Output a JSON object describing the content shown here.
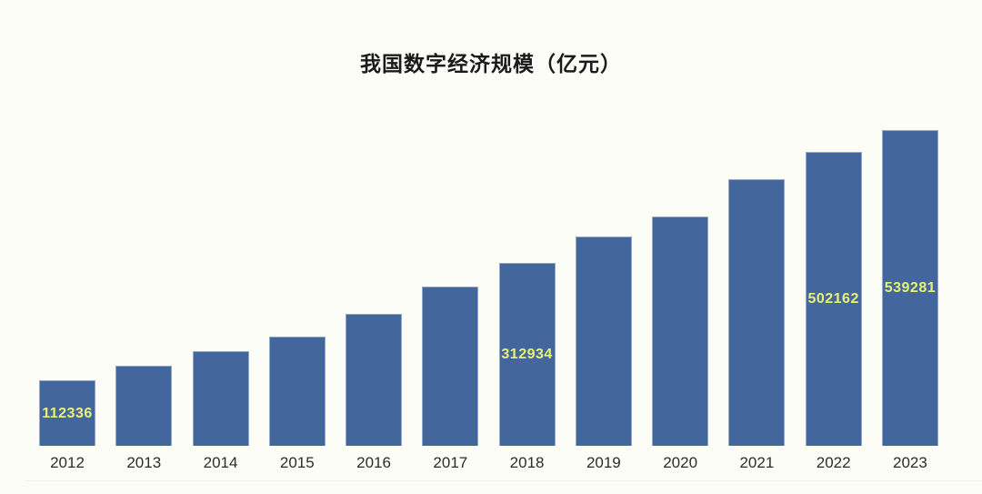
{
  "page": {
    "background_color": "#fdfdf8"
  },
  "chart": {
    "title_color": "#1b1b1b",
    "bar_color": "#43679d",
    "bar_edge_color": "#acbcd5",
    "value_label_color": "#e8f175",
    "axis_text_color": "#2b2b2b"
  },
  "chart_data": {
    "type": "bar",
    "title": "我国数字经济规模（亿元）",
    "categories": [
      "2012",
      "2013",
      "2014",
      "2015",
      "2016",
      "2017",
      "2018",
      "2019",
      "2020",
      "2021",
      "2022",
      "2023"
    ],
    "values": [
      112336,
      136000,
      162000,
      186000,
      226000,
      272000,
      312934,
      358000,
      392000,
      455000,
      502162,
      539281
    ],
    "data_labels": [
      "112336",
      null,
      null,
      null,
      null,
      null,
      "312934",
      null,
      null,
      null,
      "502162",
      "539281"
    ],
    "estimated_categories": [
      "2013",
      "2014",
      "2015",
      "2016",
      "2017",
      "2019",
      "2020",
      "2021"
    ],
    "xlabel": "",
    "ylabel": "",
    "ylim": [
      0,
      560000
    ],
    "value_axis_shown": false,
    "gridlines": false,
    "legend": "none",
    "data_label_position": "centered-inside-bar"
  }
}
